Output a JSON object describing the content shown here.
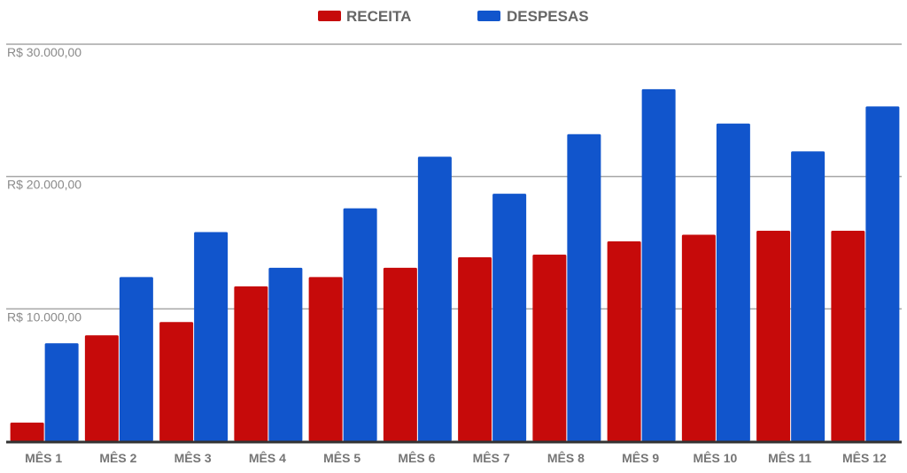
{
  "colors": {
    "receita": "#c60a0a",
    "despesas": "#1155cc"
  },
  "chart_data": {
    "type": "bar",
    "categories": [
      "MÊS 1",
      "MÊS 2",
      "MÊS 3",
      "MÊS 4",
      "MÊS 5",
      "MÊS 6",
      "MÊS 7",
      "MÊS 8",
      "MÊS 9",
      "MÊS 10",
      "MÊS 11",
      "MÊS 12"
    ],
    "series": [
      {
        "name": "RECEITA",
        "values": [
          1400,
          8000,
          9000,
          11700,
          12400,
          13100,
          13900,
          14100,
          15100,
          15600,
          15900,
          15900
        ]
      },
      {
        "name": "DESPESAS",
        "values": [
          7400,
          12400,
          15800,
          13100,
          17600,
          21500,
          18700,
          23200,
          26600,
          24000,
          21900,
          25300
        ]
      }
    ],
    "ylim": [
      0,
      30000
    ],
    "yticks": [
      10000,
      20000,
      30000
    ],
    "ytick_labels": [
      "R$ 10.000,00",
      "R$ 20.000,00",
      "R$ 30.000,00"
    ],
    "grid": true,
    "legend": "top-center"
  }
}
